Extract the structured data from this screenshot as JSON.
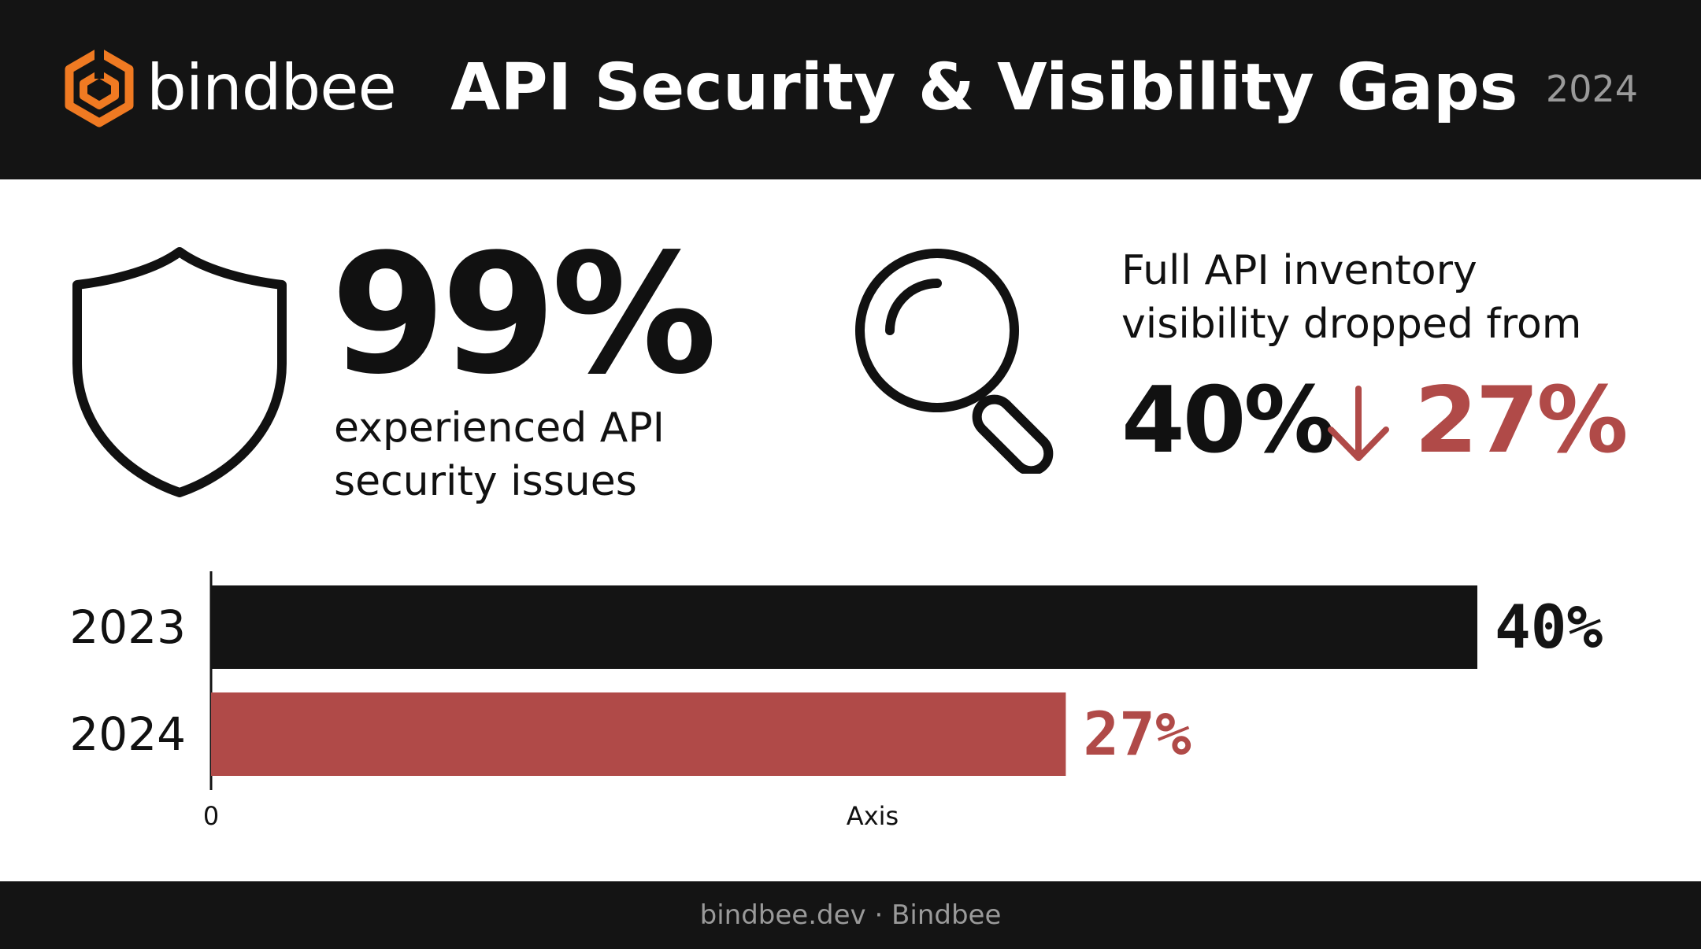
{
  "header": {
    "logo_text": "bindbee",
    "title": "API Security & Visibility Gaps",
    "year": "2024"
  },
  "stat_security": {
    "value": "99%",
    "caption_line1": "experienced API",
    "caption_line2": "security issues",
    "icon": "shield-icon"
  },
  "stat_visibility": {
    "caption_line1": "Full API inventory",
    "caption_line2": "visibility dropped from",
    "from_value": "40%",
    "to_value": "27%",
    "icon": "magnifier-icon",
    "arrow_icon": "down-arrow-icon"
  },
  "colors": {
    "brand_orange": "#f07a22",
    "accent_red": "#b04a48",
    "dark": "#141414"
  },
  "chart_data": {
    "type": "bar",
    "orientation": "horizontal",
    "categories": [
      "2023",
      "2024"
    ],
    "values": [
      40,
      27
    ],
    "value_labels": [
      "40%",
      "27%"
    ],
    "colors": [
      "#141414",
      "#b04a48"
    ],
    "x_tick_labels": [
      "0"
    ],
    "xlabel": "Axis",
    "xlim": [
      0,
      40
    ],
    "grid": false
  },
  "footer": {
    "text": "bindbee.dev · Bindbee"
  }
}
